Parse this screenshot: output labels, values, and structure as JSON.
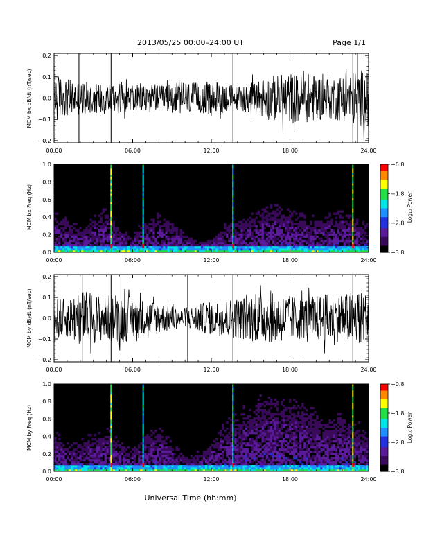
{
  "header": {
    "title": "2013/05/25  00:00–24:00 UT",
    "page": "Page 1/1"
  },
  "footer": {
    "xlabel": "Universal Time (hh:mm)"
  },
  "colors": {
    "background": "#000000",
    "trace": "#000000",
    "colormap": [
      "#000000",
      "#3a0a5a",
      "#5a1a9a",
      "#2233dd",
      "#1e90ff",
      "#00e5e5",
      "#22dd44",
      "#ffff00",
      "#ff8800",
      "#ff0000"
    ]
  },
  "chart_data": [
    {
      "type": "line",
      "ylabel": "MCM bx dB/dt (nT/sec)",
      "x_ticks": [
        "00:00",
        "06:00",
        "12:00",
        "18:00",
        "24:00"
      ],
      "y_ticks": [
        "0.2",
        "0.1",
        "0.0",
        "−0.1",
        "−0.2"
      ],
      "xlim": [
        0,
        24
      ],
      "ylim": [
        -0.21,
        0.21
      ],
      "series": [
        {
          "x": [
            0,
            1,
            2,
            3,
            4,
            5,
            6,
            7,
            8,
            9,
            10,
            11,
            12,
            13,
            14,
            15,
            16,
            17,
            18,
            19,
            20,
            21,
            22,
            23,
            24
          ],
          "values": [
            0.12,
            0.09,
            0.08,
            0.07,
            0.08,
            0.07,
            0.06,
            0.07,
            0.06,
            0.07,
            0.08,
            0.07,
            0.08,
            0.07,
            0.06,
            0.07,
            0.1,
            0.11,
            0.12,
            0.12,
            0.11,
            0.1,
            0.11,
            0.13,
            0.14
          ]
        }
      ],
      "annotations": {
        "spikes_hr": [
          1.9,
          4.35,
          13.65,
          22.8,
          23.15
        ]
      }
    },
    {
      "type": "heatmap",
      "ylabel": "MCM bx Freq (Hz)",
      "x_ticks": [
        "00:00",
        "06:00",
        "12:00",
        "18:00",
        "24:00"
      ],
      "y_ticks": [
        "1.0",
        "0.8",
        "0.6",
        "0.4",
        "0.2",
        "0.0"
      ],
      "xlim": [
        0,
        24
      ],
      "ylim": [
        0,
        1.0
      ],
      "colorbar": {
        "label": "Log₁₀ Power",
        "ticks": [
          "−0.8",
          "−1.8",
          "−2.8",
          "−3.8"
        ],
        "range": [
          -3.8,
          -0.8
        ]
      },
      "series": [
        {
          "name": "max_power_freq_extent",
          "x": [
            0,
            1,
            2,
            3,
            4,
            5,
            6,
            7,
            8,
            9,
            10,
            11,
            12,
            13,
            14,
            15,
            16,
            17,
            18,
            19,
            20,
            21,
            22,
            23,
            24
          ],
          "values": [
            0.45,
            0.35,
            0.25,
            0.35,
            0.45,
            0.25,
            0.18,
            0.35,
            0.4,
            0.3,
            0.2,
            0.12,
            0.15,
            0.3,
            0.35,
            0.4,
            0.45,
            0.5,
            0.45,
            0.4,
            0.35,
            0.4,
            0.45,
            0.35,
            0.3
          ]
        }
      ],
      "annotations": {
        "broadband_lines_hr": [
          4.35,
          6.8,
          13.65,
          22.8
        ]
      }
    },
    {
      "type": "line",
      "ylabel": "MCM by dB/dt (nT/sec)",
      "x_ticks": [
        "00:00",
        "06:00",
        "12:00",
        "18:00",
        "24:00"
      ],
      "y_ticks": [
        "0.2",
        "0.1",
        "0.0",
        "−0.1",
        "−0.2"
      ],
      "xlim": [
        0,
        24
      ],
      "ylim": [
        -0.21,
        0.21
      ],
      "series": [
        {
          "x": [
            0,
            1,
            2,
            3,
            4,
            5,
            6,
            7,
            8,
            9,
            10,
            11,
            12,
            13,
            14,
            15,
            16,
            17,
            18,
            19,
            20,
            21,
            22,
            23,
            24
          ],
          "values": [
            0.1,
            0.09,
            0.14,
            0.12,
            0.11,
            0.13,
            0.1,
            0.09,
            0.08,
            0.06,
            0.04,
            0.07,
            0.08,
            0.09,
            0.1,
            0.11,
            0.12,
            0.12,
            0.11,
            0.1,
            0.11,
            0.12,
            0.11,
            0.14,
            0.12
          ]
        }
      ],
      "annotations": {
        "spikes_hr": [
          2.15,
          4.35,
          5.1,
          10.2,
          13.65,
          22.8
        ]
      }
    },
    {
      "type": "heatmap",
      "ylabel": "MCM by Freq (Hz)",
      "x_ticks": [
        "00:00",
        "06:00",
        "12:00",
        "18:00",
        "24:00"
      ],
      "y_ticks": [
        "1.0",
        "0.8",
        "0.6",
        "0.4",
        "0.2",
        "0.0"
      ],
      "xlim": [
        0,
        24
      ],
      "ylim": [
        0,
        1.0
      ],
      "colorbar": {
        "label": "Log₁₀ Power",
        "ticks": [
          "−0.8",
          "−1.8",
          "−2.8",
          "−3.8"
        ],
        "range": [
          -3.8,
          -0.8
        ]
      },
      "series": [
        {
          "name": "max_power_freq_extent",
          "x": [
            0,
            1,
            2,
            3,
            4,
            5,
            6,
            7,
            8,
            9,
            10,
            11,
            12,
            13,
            14,
            15,
            16,
            17,
            18,
            19,
            20,
            21,
            22,
            23,
            24
          ],
          "values": [
            0.4,
            0.3,
            0.3,
            0.4,
            0.45,
            0.3,
            0.25,
            0.4,
            0.45,
            0.3,
            0.15,
            0.2,
            0.3,
            0.5,
            0.6,
            0.7,
            0.75,
            0.8,
            0.75,
            0.7,
            0.6,
            0.55,
            0.6,
            0.5,
            0.4
          ]
        }
      ],
      "annotations": {
        "broadband_lines_hr": [
          4.35,
          6.8,
          13.65,
          22.8
        ]
      }
    }
  ]
}
